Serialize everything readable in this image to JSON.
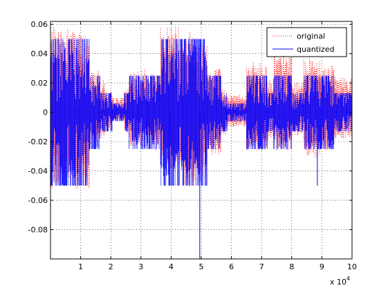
{
  "chart_data": {
    "type": "line",
    "title": "",
    "xlabel": "",
    "ylabel": "",
    "x_multiplier_label": {
      "base": "x 10",
      "exponent": "4"
    },
    "xlim": [
      0,
      100000
    ],
    "ylim": [
      -0.1,
      0.062
    ],
    "x_ticks": [
      {
        "value": 10000,
        "label": "1"
      },
      {
        "value": 20000,
        "label": "2"
      },
      {
        "value": 30000,
        "label": "3"
      },
      {
        "value": 40000,
        "label": "4"
      },
      {
        "value": 50000,
        "label": "5"
      },
      {
        "value": 60000,
        "label": "6"
      },
      {
        "value": 70000,
        "label": "7"
      },
      {
        "value": 80000,
        "label": "8"
      },
      {
        "value": 90000,
        "label": "9"
      },
      {
        "value": 100000,
        "label": "10"
      }
    ],
    "y_ticks": [
      {
        "value": 0.06,
        "label": "0.06"
      },
      {
        "value": 0.04,
        "label": "0.04"
      },
      {
        "value": 0.02,
        "label": "0.02"
      },
      {
        "value": 0,
        "label": "0"
      },
      {
        "value": -0.02,
        "label": "-0.02"
      },
      {
        "value": -0.04,
        "label": "-0.04"
      },
      {
        "value": -0.06,
        "label": "-0.06"
      },
      {
        "value": -0.08,
        "label": "-0.08"
      }
    ],
    "grid": true,
    "legend_position": "top-right",
    "series": [
      {
        "name": "original",
        "color": "#ff0000",
        "style": "dotted",
        "segments": [
          {
            "x": [
              0,
              9000
            ],
            "min": -0.052,
            "max": 0.058
          },
          {
            "x": [
              9000,
              13000
            ],
            "min": -0.052,
            "max": 0.054
          },
          {
            "x": [
              13000,
              16500
            ],
            "min": -0.024,
            "max": 0.028
          },
          {
            "x": [
              16500,
              18000
            ],
            "min": -0.018,
            "max": 0.022
          },
          {
            "x": [
              18000,
              20500
            ],
            "min": -0.012,
            "max": 0.014
          },
          {
            "x": [
              20500,
              24500
            ],
            "min": -0.006,
            "max": 0.01
          },
          {
            "x": [
              24500,
              26000
            ],
            "min": -0.014,
            "max": 0.016
          },
          {
            "x": [
              26000,
              29000
            ],
            "min": -0.024,
            "max": 0.026
          },
          {
            "x": [
              29000,
              32000
            ],
            "min": -0.024,
            "max": 0.03
          },
          {
            "x": [
              32000,
              36500
            ],
            "min": -0.026,
            "max": 0.026
          },
          {
            "x": [
              36500,
              44000
            ],
            "min": -0.04,
            "max": 0.06
          },
          {
            "x": [
              44000,
              49000
            ],
            "min": -0.052,
            "max": 0.056
          },
          {
            "x": [
              49000,
              52000
            ],
            "min": -0.048,
            "max": 0.05
          },
          {
            "x": [
              52000,
              56500
            ],
            "min": -0.03,
            "max": 0.03
          },
          {
            "x": [
              56500,
              58500
            ],
            "min": -0.016,
            "max": 0.016
          },
          {
            "x": [
              58500,
              65000
            ],
            "min": -0.01,
            "max": 0.012
          },
          {
            "x": [
              65000,
              72000
            ],
            "min": -0.026,
            "max": 0.034
          },
          {
            "x": [
              72000,
              74000
            ],
            "min": -0.02,
            "max": 0.022
          },
          {
            "x": [
              74000,
              80000
            ],
            "min": -0.026,
            "max": 0.04
          },
          {
            "x": [
              80000,
              84000
            ],
            "min": -0.016,
            "max": 0.02
          },
          {
            "x": [
              84000,
              89500
            ],
            "min": -0.032,
            "max": 0.038
          },
          {
            "x": [
              89500,
              94000
            ],
            "min": -0.026,
            "max": 0.032
          },
          {
            "x": [
              94000,
              100000
            ],
            "min": -0.018,
            "max": 0.024
          }
        ]
      },
      {
        "name": "quantized",
        "color": "#0000ff",
        "style": "solid",
        "segments": [
          {
            "x": [
              0,
              9000
            ],
            "min": -0.05,
            "max": 0.05
          },
          {
            "x": [
              9000,
              13000
            ],
            "min": -0.05,
            "max": 0.05
          },
          {
            "x": [
              13000,
              16500
            ],
            "min": -0.025,
            "max": 0.025
          },
          {
            "x": [
              16500,
              18000
            ],
            "min": -0.013,
            "max": 0.013
          },
          {
            "x": [
              18000,
              20500
            ],
            "min": -0.013,
            "max": 0.013
          },
          {
            "x": [
              20500,
              24500
            ],
            "min": -0.006,
            "max": 0.006
          },
          {
            "x": [
              24500,
              26000
            ],
            "min": -0.013,
            "max": 0.013
          },
          {
            "x": [
              26000,
              29000
            ],
            "min": -0.025,
            "max": 0.025
          },
          {
            "x": [
              29000,
              32000
            ],
            "min": -0.025,
            "max": 0.025
          },
          {
            "x": [
              32000,
              36500
            ],
            "min": -0.025,
            "max": 0.025
          },
          {
            "x": [
              36500,
              44000
            ],
            "min": -0.05,
            "max": 0.05
          },
          {
            "x": [
              44000,
              49000
            ],
            "min": -0.05,
            "max": 0.05
          },
          {
            "x": [
              49000,
              52000
            ],
            "min": -0.05,
            "max": 0.05
          },
          {
            "x": [
              52000,
              56500
            ],
            "min": -0.025,
            "max": 0.025
          },
          {
            "x": [
              56500,
              58500
            ],
            "min": -0.013,
            "max": 0.013
          },
          {
            "x": [
              58500,
              65000
            ],
            "min": -0.006,
            "max": 0.006
          },
          {
            "x": [
              65000,
              72000
            ],
            "min": -0.025,
            "max": 0.025
          },
          {
            "x": [
              72000,
              74000
            ],
            "min": -0.013,
            "max": 0.013
          },
          {
            "x": [
              74000,
              80000
            ],
            "min": -0.025,
            "max": 0.025
          },
          {
            "x": [
              80000,
              84000
            ],
            "min": -0.013,
            "max": 0.013
          },
          {
            "x": [
              84000,
              89500
            ],
            "min": -0.025,
            "max": 0.025
          },
          {
            "x": [
              89500,
              94000
            ],
            "min": -0.025,
            "max": 0.025
          },
          {
            "x": [
              94000,
              100000
            ],
            "min": -0.013,
            "max": 0.013
          }
        ],
        "spikes": [
          {
            "x": 18000,
            "y": -0.013
          },
          {
            "x": 39500,
            "y": -0.05
          },
          {
            "x": 49500,
            "y": -0.1
          },
          {
            "x": 58500,
            "y": -0.013
          },
          {
            "x": 88500,
            "y": -0.05
          }
        ]
      }
    ]
  }
}
